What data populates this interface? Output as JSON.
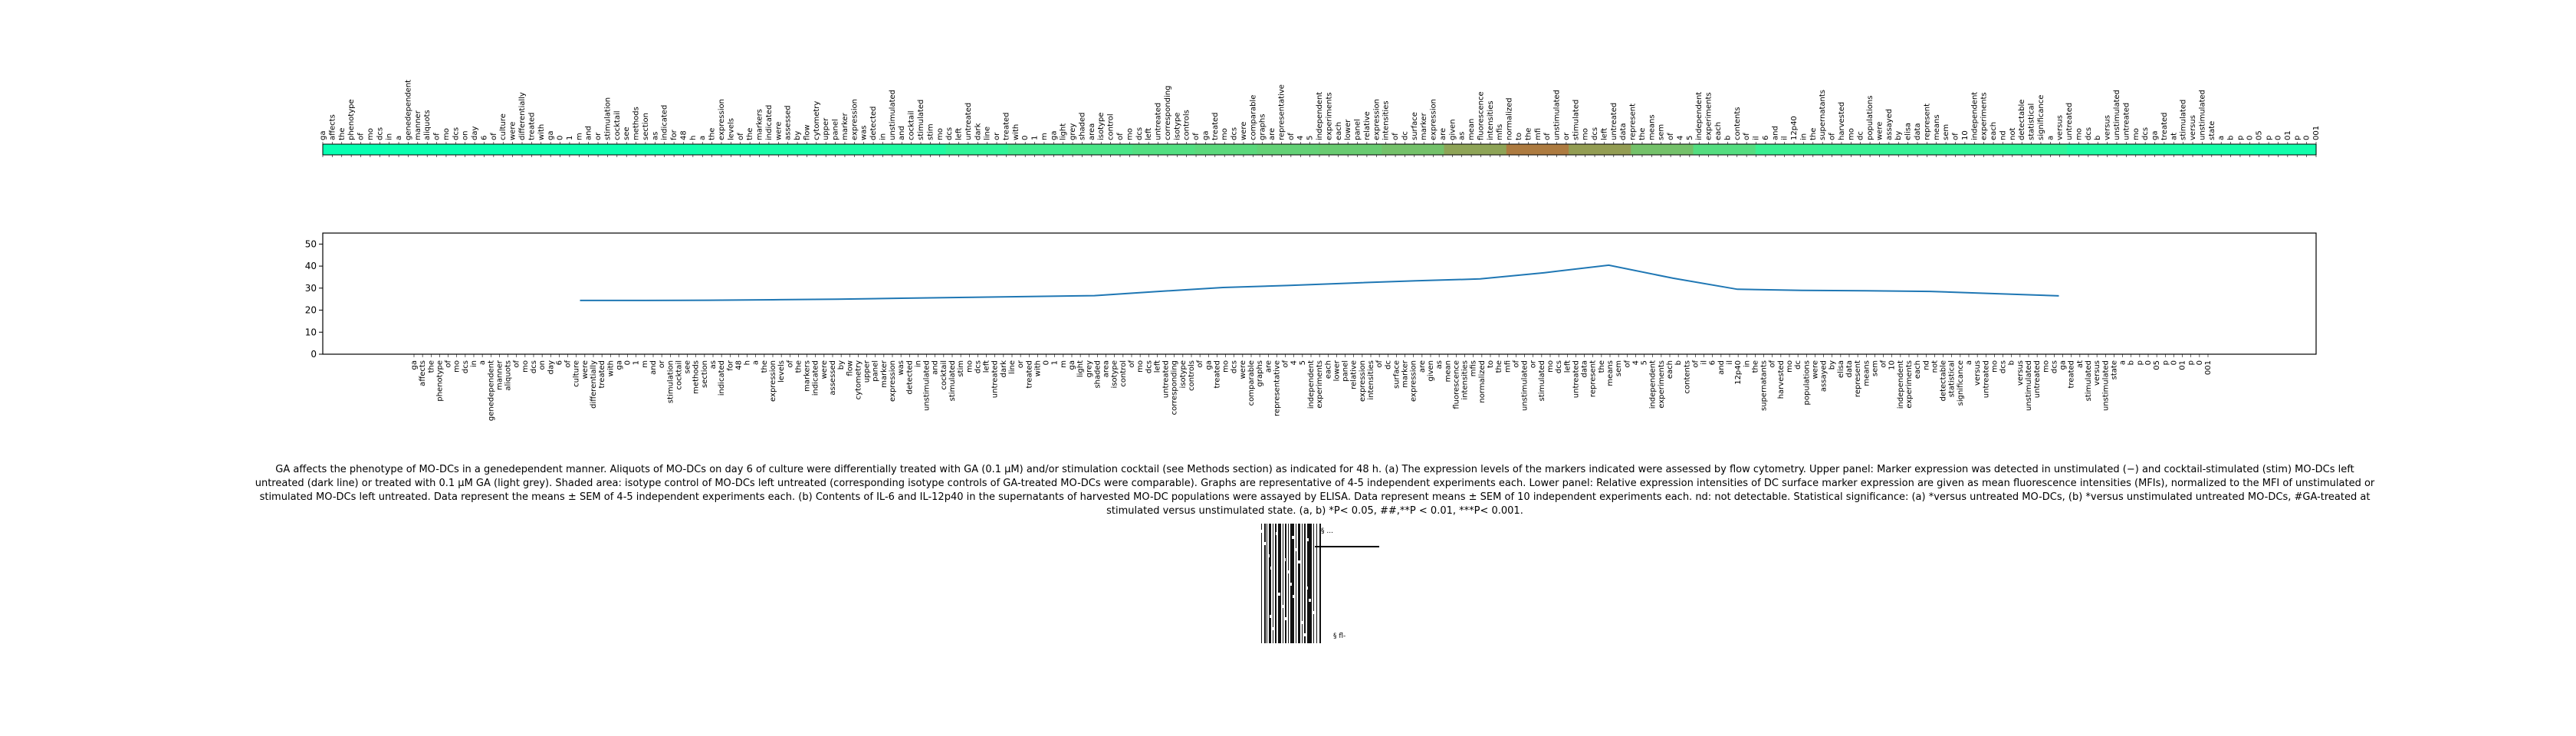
{
  "caption": "GA affects the phenotype of MO-DCs in a genedependent manner. Aliquots of MO-DCs on day 6 of culture were differentially treated with GA (0.1 μM) and/or stimulation cocktail (see Methods section) as indicated for 48 h. (a) The expression levels of the markers indicated were assessed by flow cytometry. Upper panel: Marker expression was detected in unstimulated (−) and cocktail-stimulated (stim) MO-DCs left untreated (dark line) or treated with 0.1 μM GA (light grey). Shaded area: isotype control of MO-DCs left untreated (corresponding isotype controls of GA-treated MO-DCs were comparable). Graphs are representative of 4-5 independent experiments each. Lower panel: Relative expression intensities of DC surface marker expression are given as mean fluorescence intensities (MFIs), normalized to the MFI of unstimulated or stimulated MO-DCs left untreated. Data represent the means ± SEM of 4-5 independent experiments each. (b) Contents of IL-6 and IL-12p40 in the supernatants of harvested MO-DC populations were assayed by ELISA. Data represent means ± SEM of 10 independent experiments each. nd: not detectable. Statistical significance: (a) *versus untreated MO-DCs, (b) *versus unstimulated untreated MO-DCs, #GA-treated at stimulated versus unstimulated state. (a, b) *P< 0.05, ##,**P < 0.01, ***P< 0.001.",
  "chart_data": [
    {
      "type": "heatmap",
      "colormap": "rainbow",
      "tick_labels": [
        "ga",
        "affects",
        "the",
        "phenotype",
        "of",
        "mo",
        "dcs",
        "in",
        "a",
        "genedependent",
        "manner",
        "aliquots",
        "of",
        "mo",
        "dcs",
        "on",
        "day",
        "6",
        "of",
        "culture",
        "were",
        "differentially",
        "treated",
        "with",
        "ga",
        "0",
        "1",
        "m",
        "and",
        "or",
        "stimulation",
        "cocktail",
        "see",
        "methods",
        "section",
        "as",
        "indicated",
        "for",
        "48",
        "h",
        "a",
        "the",
        "expression",
        "levels",
        "of",
        "the",
        "markers",
        "indicated",
        "were",
        "assessed",
        "by",
        "flow",
        "cytometry",
        "upper",
        "panel",
        "marker",
        "expression",
        "was",
        "detected",
        "in",
        "unstimulated",
        "and",
        "cocktail",
        "stimulated",
        "stim",
        "mo",
        "dcs",
        "left",
        "untreated",
        "dark",
        "line",
        "or",
        "treated",
        "with",
        "0",
        "1",
        "m",
        "ga",
        "light",
        "grey",
        "shaded",
        "area",
        "isotype",
        "control",
        "of",
        "mo",
        "dcs",
        "left",
        "untreated",
        "corresponding",
        "isotype",
        "controls",
        "of",
        "ga",
        "treated",
        "mo",
        "dcs",
        "were",
        "comparable",
        "graphs",
        "are",
        "representative",
        "of",
        "4",
        "5",
        "independent",
        "experiments",
        "each",
        "lower",
        "panel",
        "relative",
        "expression",
        "intensities",
        "of",
        "dc",
        "surface",
        "marker",
        "expression",
        "are",
        "given",
        "as",
        "mean",
        "fluorescence",
        "intensities",
        "mfis",
        "normalized",
        "to",
        "the",
        "mfi",
        "of",
        "unstimulated",
        "or",
        "stimulated",
        "mo",
        "dcs",
        "left",
        "untreated",
        "data",
        "represent",
        "the",
        "means",
        "sem",
        "of",
        "4",
        "5",
        "independent",
        "experiments",
        "each",
        "b",
        "contents",
        "of",
        "il",
        "6",
        "and",
        "il",
        "12p40",
        "in",
        "the",
        "supernatants",
        "of",
        "harvested",
        "mo",
        "dc",
        "populations",
        "were",
        "assayed",
        "by",
        "elisa",
        "data",
        "represent",
        "means",
        "sem",
        "of",
        "10",
        "independent",
        "experiments",
        "each",
        "nd",
        "not",
        "detectable",
        "statistical",
        "significance",
        "a",
        "versus",
        "untreated",
        "mo",
        "dcs",
        "b",
        "versus",
        "unstimulated",
        "untreated",
        "mo",
        "dcs",
        "ga",
        "treated",
        "at",
        "stimulated",
        "versus",
        "unstimulated",
        "state",
        "a",
        "b",
        "p",
        "0",
        "05",
        "p",
        "0",
        "01",
        "p",
        "0",
        "001"
      ],
      "values": [
        24.5,
        24.8,
        24.7,
        24.9,
        25.0,
        25.3,
        25.6,
        26.1,
        26.5,
        27.0,
        28.5,
        30.0,
        31.0,
        31.8,
        32.6,
        33.4,
        34.0,
        35.0,
        37.5,
        40.5,
        38.0,
        35.0,
        32.0,
        29.5,
        29.2,
        29.0,
        28.7,
        28.3,
        27.0,
        26.5,
        26.0,
        25.5
      ]
    },
    {
      "type": "line",
      "tick_labels": [
        "ga",
        "affects",
        "the",
        "phenotype",
        "of",
        "mo",
        "dcs",
        "in",
        "a",
        "genedependent",
        "manner",
        "aliquots",
        "of",
        "mo",
        "dcs",
        "on",
        "day",
        "6",
        "of",
        "culture",
        "were",
        "differentially",
        "treated",
        "with",
        "ga",
        "0",
        "1",
        "m",
        "and",
        "or",
        "stimulation",
        "cocktail",
        "see",
        "methods",
        "section",
        "as",
        "indicated",
        "for",
        "48",
        "h",
        "a",
        "the",
        "expression",
        "levels",
        "of",
        "the",
        "markers",
        "indicated",
        "were",
        "assessed",
        "by",
        "flow",
        "cytometry",
        "upper",
        "panel",
        "marker",
        "expression",
        "was",
        "detected",
        "in",
        "unstimulated",
        "and",
        "cocktail",
        "stimulated",
        "stim",
        "mo",
        "dcs",
        "left",
        "untreated",
        "dark",
        "line",
        "or",
        "treated",
        "with",
        "0",
        "1",
        "m",
        "ga",
        "light",
        "grey",
        "shaded",
        "area",
        "isotype",
        "control",
        "of",
        "mo",
        "dcs",
        "left",
        "untreated",
        "corresponding",
        "isotype",
        "controls",
        "of",
        "ga",
        "treated",
        "mo",
        "dcs",
        "were",
        "comparable",
        "graphs",
        "are",
        "representative",
        "of",
        "4",
        "5",
        "independent",
        "experiments",
        "each",
        "lower",
        "panel",
        "relative",
        "expression",
        "intensities",
        "of",
        "dc",
        "surface",
        "marker",
        "expression",
        "are",
        "given",
        "as",
        "mean",
        "fluorescence",
        "intensities",
        "mfis",
        "normalized",
        "to",
        "the",
        "mfi",
        "of",
        "unstimulated",
        "or",
        "stimulated",
        "mo",
        "dcs",
        "left",
        "untreated",
        "data",
        "represent",
        "the",
        "means",
        "sem",
        "of",
        "4",
        "5",
        "independent",
        "experiments",
        "each",
        "b",
        "contents",
        "of",
        "il",
        "6",
        "and",
        "il",
        "12p40",
        "in",
        "the",
        "supernatants",
        "of",
        "harvested",
        "mo",
        "dc",
        "populations",
        "were",
        "assayed",
        "by",
        "elisa",
        "data",
        "represent",
        "means",
        "sem",
        "of",
        "10",
        "independent",
        "experiments",
        "each",
        "nd",
        "not",
        "detectable",
        "statistical",
        "significance",
        "a",
        "versus",
        "untreated",
        "mo",
        "dcs",
        "b",
        "versus",
        "unstimulated",
        "untreated",
        "mo",
        "dcs",
        "ga",
        "treated",
        "at",
        "stimulated",
        "versus",
        "unstimulated",
        "state",
        "a",
        "b",
        "p",
        "0",
        "05",
        "p",
        "0",
        "01",
        "p",
        "0",
        "001"
      ],
      "x": [
        0,
        5,
        10,
        15,
        20,
        25,
        30,
        35,
        40,
        45,
        50,
        55,
        60,
        65,
        70,
        75,
        80,
        85,
        90,
        95,
        100,
        105,
        110,
        115
      ],
      "y": [
        24.4,
        24.4,
        24.5,
        24.7,
        25.0,
        25.4,
        25.8,
        26.2,
        26.6,
        28.5,
        30.3,
        31.2,
        32.3,
        33.3,
        34.2,
        37.0,
        40.4,
        34.5,
        29.5,
        29.0,
        28.8,
        28.5,
        27.5,
        26.5
      ],
      "ylim": [
        0,
        55
      ],
      "yticks": [
        0,
        10,
        20,
        30,
        40,
        50
      ],
      "color": "#1f77b4",
      "grid": false
    }
  ],
  "thumbnail": {
    "labels": [
      "§ ...",
      "§ fl-"
    ]
  }
}
